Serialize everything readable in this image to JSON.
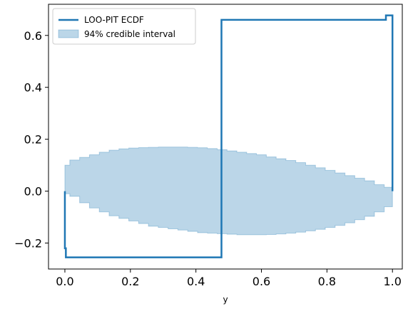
{
  "chart_data": {
    "type": "line",
    "title": "",
    "xlabel": "y",
    "ylabel": "",
    "xlim": [
      -0.05,
      1.03
    ],
    "ylim": [
      -0.3,
      0.72
    ],
    "grid": false,
    "legend_placement": "top-left",
    "x_ticks": [
      0.0,
      0.2,
      0.4,
      0.6,
      0.8,
      1.0
    ],
    "x_tick_labels": [
      "0.0",
      "0.2",
      "0.4",
      "0.6",
      "0.8",
      "1.0"
    ],
    "y_ticks": [
      -0.2,
      0.0,
      0.2,
      0.4,
      0.6
    ],
    "y_tick_labels": [
      "−0.2",
      "0.0",
      "0.2",
      "0.4",
      "0.6"
    ],
    "colors": {
      "ecdf": "#1f77b4",
      "band": "#1f77b4"
    },
    "series": [
      {
        "name": "LOO-PIT ECDF",
        "kind": "step",
        "points": [
          [
            0.0,
            0.0
          ],
          [
            0.0,
            -0.22
          ],
          [
            0.003,
            -0.22
          ],
          [
            0.003,
            -0.255
          ],
          [
            0.478,
            -0.255
          ],
          [
            0.478,
            0.66
          ],
          [
            0.98,
            0.66
          ],
          [
            0.98,
            0.677
          ],
          [
            1.0,
            0.677
          ],
          [
            1.0,
            0.0
          ]
        ]
      },
      {
        "name": "94% credible interval",
        "kind": "band",
        "x": [
          0.0,
          0.015,
          0.045,
          0.075,
          0.105,
          0.135,
          0.165,
          0.195,
          0.225,
          0.255,
          0.285,
          0.315,
          0.345,
          0.375,
          0.405,
          0.435,
          0.465,
          0.495,
          0.525,
          0.555,
          0.585,
          0.615,
          0.645,
          0.675,
          0.705,
          0.735,
          0.765,
          0.795,
          0.825,
          0.855,
          0.885,
          0.915,
          0.945,
          0.975,
          1.0
        ],
        "lower": [
          -0.01,
          -0.02,
          -0.045,
          -0.065,
          -0.08,
          -0.095,
          -0.105,
          -0.115,
          -0.125,
          -0.135,
          -0.14,
          -0.145,
          -0.15,
          -0.155,
          -0.16,
          -0.162,
          -0.164,
          -0.166,
          -0.168,
          -0.168,
          -0.168,
          -0.167,
          -0.165,
          -0.162,
          -0.158,
          -0.153,
          -0.147,
          -0.14,
          -0.132,
          -0.122,
          -0.11,
          -0.097,
          -0.08,
          -0.06,
          -0.04
        ],
        "upper": [
          0.1,
          0.12,
          0.13,
          0.14,
          0.15,
          0.158,
          0.163,
          0.166,
          0.168,
          0.169,
          0.17,
          0.17,
          0.17,
          0.169,
          0.167,
          0.164,
          0.16,
          0.155,
          0.15,
          0.145,
          0.14,
          0.132,
          0.125,
          0.118,
          0.11,
          0.1,
          0.09,
          0.08,
          0.07,
          0.06,
          0.05,
          0.04,
          0.025,
          0.015,
          0.0
        ]
      }
    ]
  }
}
